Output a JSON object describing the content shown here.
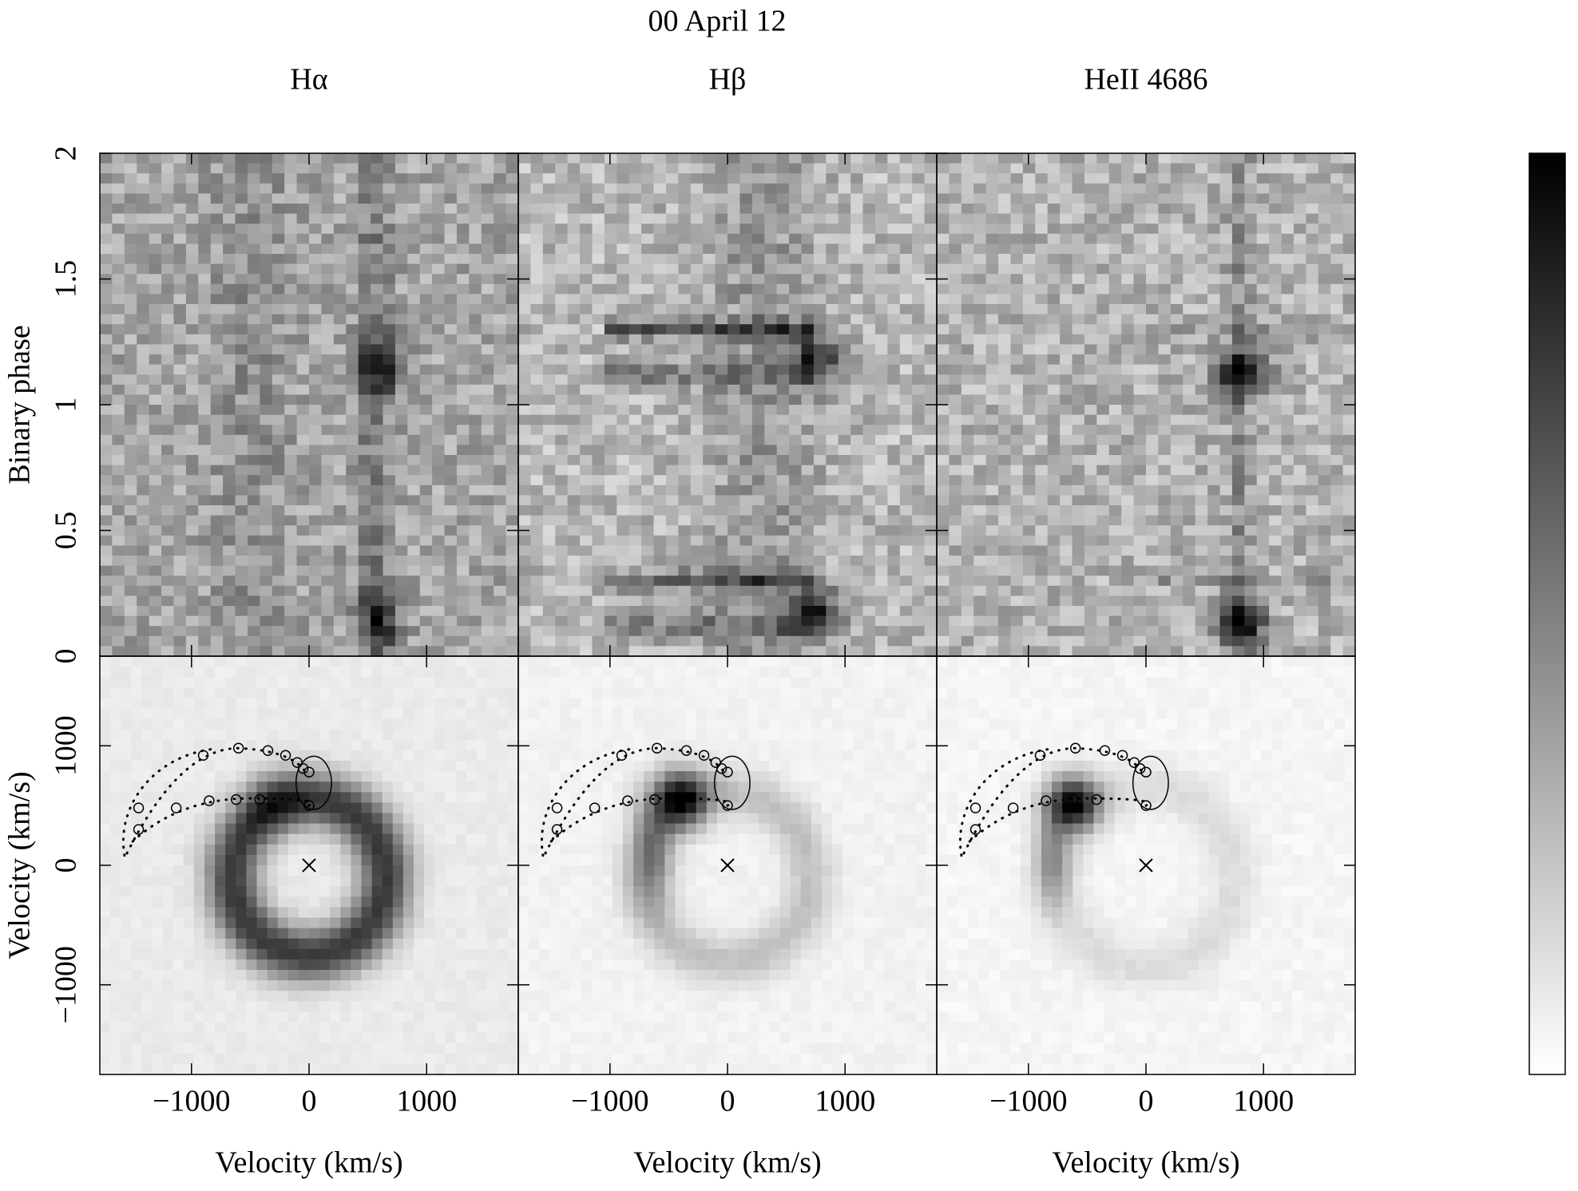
{
  "chart_data": [
    {
      "type": "trailed-spectra",
      "title": "00 April 12",
      "panel_titles": [
        "Hα",
        "Hβ",
        "HeII 4686"
      ],
      "ylabel": "Binary phase",
      "xlim": [
        -1780,
        1780
      ],
      "xticks": [
        {
          "value": -1000,
          "label": "−1000"
        },
        0,
        1000
      ],
      "ylim": [
        0,
        2
      ],
      "yticks": [
        0,
        0.5,
        1,
        1.5,
        2
      ],
      "colormap": "gray"
    },
    {
      "type": "doppler-map",
      "xlabel": "Velocity (km/s)",
      "ylabel": "Velocity (km/s)",
      "xlim": [
        -1780,
        1780
      ],
      "xticks": [
        {
          "value": -1000,
          "label": "−1000"
        },
        0,
        1000
      ],
      "ylim": [
        -1750,
        1750
      ],
      "yticks": [
        {
          "value": -1000,
          "label": "−1000"
        },
        0,
        1000
      ],
      "colormap": "gray"
    }
  ]
}
